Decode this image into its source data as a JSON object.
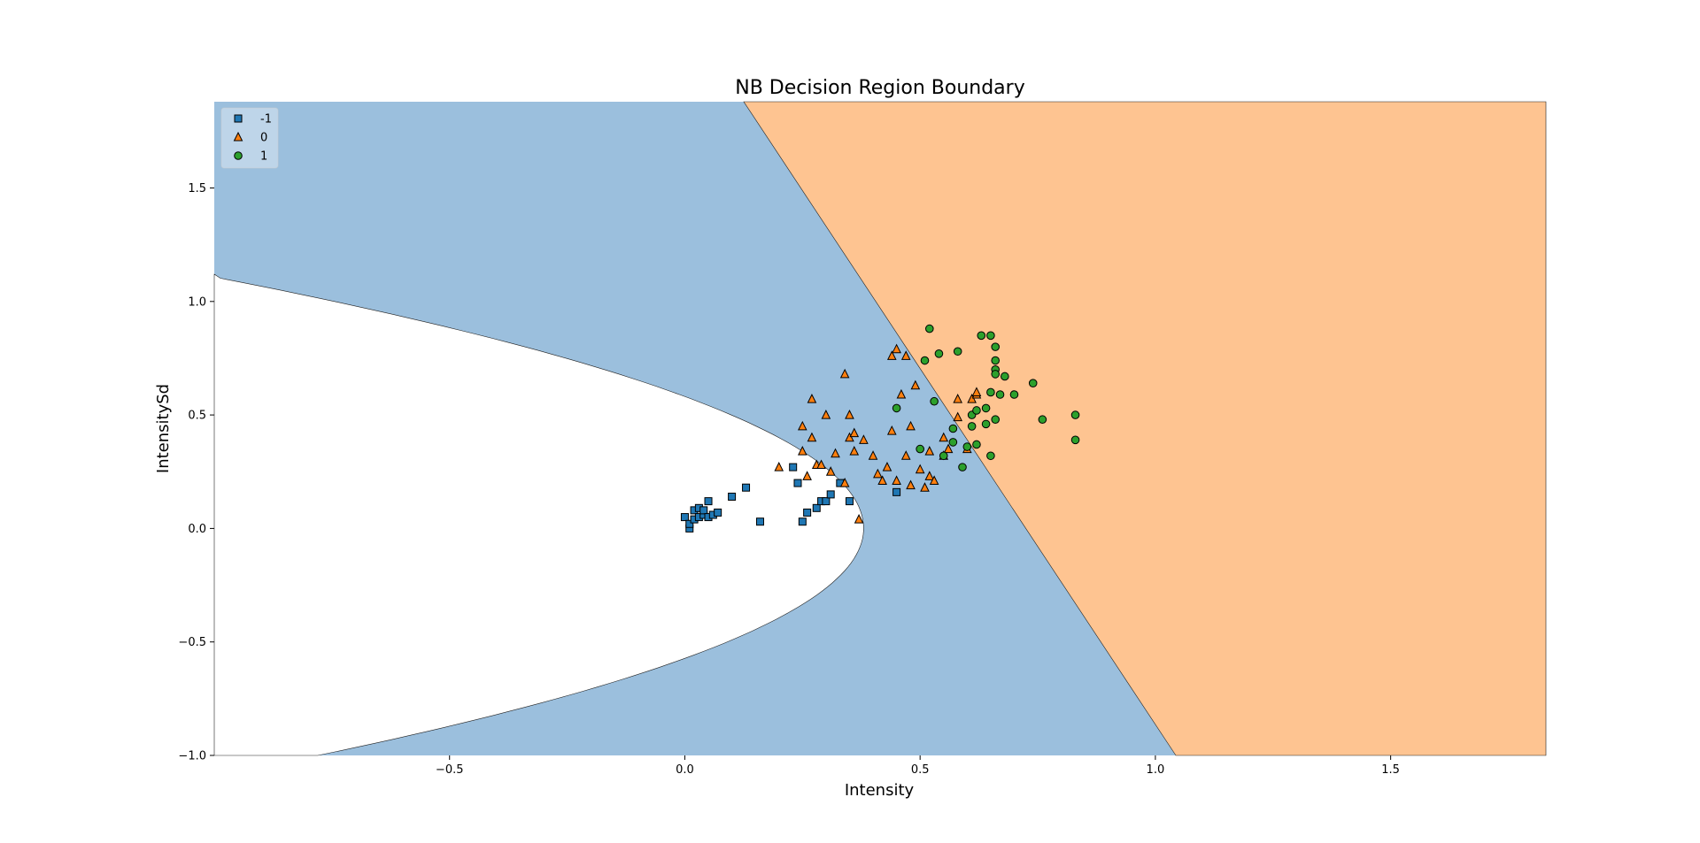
{
  "chart_data": {
    "type": "scatter",
    "title": "NB Decision Region Boundary",
    "xlabel": "Intensity",
    "ylabel": "IntensitySd",
    "xlim": [
      -1.0,
      1.83
    ],
    "ylim": [
      -1.0,
      1.88
    ],
    "xticks": [
      -0.5,
      0.0,
      0.5,
      1.0,
      1.5
    ],
    "xtick_labels": [
      "−0.5",
      "0.0",
      "0.5",
      "1.0",
      "1.5"
    ],
    "yticks": [
      -1.0,
      -0.5,
      0.0,
      0.5,
      1.0,
      1.5
    ],
    "ytick_labels": [
      "−1.0",
      "−0.5",
      "0.0",
      "0.5",
      "1.0",
      "1.5"
    ],
    "grid": false,
    "legend_position": "top-left",
    "regions": [
      {
        "class": "-1",
        "color": "#ffffff"
      },
      {
        "class": "0",
        "color": "#9bbfdd"
      },
      {
        "class": "1",
        "color": "#fec491"
      }
    ],
    "series": [
      {
        "name": "-1",
        "marker": "square",
        "color": "#1f77b4",
        "x": [
          0.0,
          0.01,
          0.01,
          0.02,
          0.02,
          0.03,
          0.03,
          0.04,
          0.04,
          0.05,
          0.05,
          0.06,
          0.07,
          0.1,
          0.13,
          0.16,
          0.23,
          0.24,
          0.25,
          0.26,
          0.28,
          0.29,
          0.3,
          0.31,
          0.33,
          0.35,
          0.45
        ],
        "y": [
          0.05,
          0.0,
          0.02,
          0.04,
          0.08,
          0.05,
          0.09,
          0.06,
          0.08,
          0.05,
          0.12,
          0.06,
          0.07,
          0.14,
          0.18,
          0.03,
          0.27,
          0.2,
          0.03,
          0.07,
          0.09,
          0.12,
          0.12,
          0.15,
          0.2,
          0.12,
          0.16
        ]
      },
      {
        "name": "0",
        "marker": "triangle",
        "color": "#ff7f0e",
        "x": [
          0.2,
          0.25,
          0.25,
          0.26,
          0.27,
          0.27,
          0.28,
          0.29,
          0.3,
          0.31,
          0.32,
          0.34,
          0.34,
          0.35,
          0.35,
          0.36,
          0.36,
          0.37,
          0.38,
          0.4,
          0.41,
          0.42,
          0.43,
          0.44,
          0.44,
          0.45,
          0.45,
          0.46,
          0.47,
          0.47,
          0.48,
          0.48,
          0.49,
          0.5,
          0.51,
          0.52,
          0.52,
          0.53,
          0.55,
          0.55,
          0.56,
          0.58,
          0.58,
          0.6,
          0.61,
          0.62,
          0.62
        ],
        "y": [
          0.27,
          0.34,
          0.45,
          0.23,
          0.4,
          0.57,
          0.28,
          0.28,
          0.5,
          0.25,
          0.33,
          0.68,
          0.2,
          0.5,
          0.4,
          0.34,
          0.42,
          0.04,
          0.39,
          0.32,
          0.24,
          0.21,
          0.27,
          0.43,
          0.76,
          0.79,
          0.21,
          0.59,
          0.32,
          0.76,
          0.19,
          0.45,
          0.63,
          0.26,
          0.18,
          0.23,
          0.34,
          0.21,
          0.4,
          0.32,
          0.35,
          0.57,
          0.49,
          0.35,
          0.57,
          0.59,
          0.6
        ]
      },
      {
        "name": "1",
        "marker": "circle",
        "color": "#2ca02c",
        "x": [
          0.45,
          0.5,
          0.51,
          0.52,
          0.53,
          0.54,
          0.55,
          0.57,
          0.57,
          0.58,
          0.59,
          0.6,
          0.61,
          0.61,
          0.62,
          0.62,
          0.63,
          0.64,
          0.64,
          0.65,
          0.65,
          0.65,
          0.66,
          0.66,
          0.66,
          0.66,
          0.66,
          0.67,
          0.68,
          0.7,
          0.74,
          0.76,
          0.83,
          0.83
        ],
        "y": [
          0.53,
          0.35,
          0.74,
          0.88,
          0.56,
          0.77,
          0.32,
          0.44,
          0.38,
          0.78,
          0.27,
          0.36,
          0.5,
          0.45,
          0.52,
          0.37,
          0.85,
          0.46,
          0.53,
          0.32,
          0.6,
          0.85,
          0.8,
          0.7,
          0.68,
          0.74,
          0.48,
          0.59,
          0.67,
          0.59,
          0.64,
          0.48,
          0.5,
          0.39
        ]
      }
    ]
  }
}
